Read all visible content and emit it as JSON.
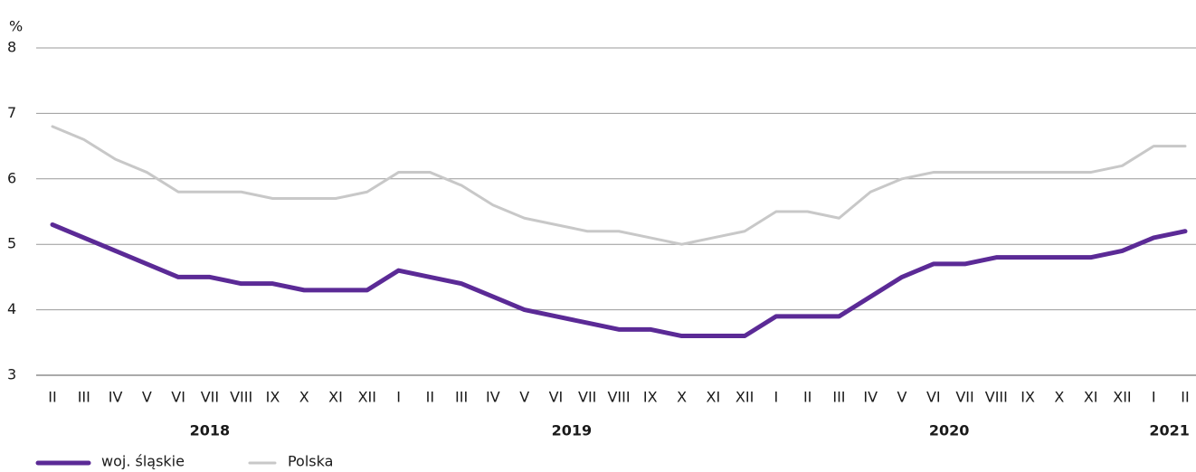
{
  "chart_data": {
    "type": "line",
    "y_unit": "%",
    "year_groups": [
      {
        "label": "2018",
        "categories": [
          "II",
          "III",
          "IV",
          "V",
          "VI",
          "VII",
          "VIII",
          "IX",
          "X",
          "XI",
          "XII"
        ]
      },
      {
        "label": "2019",
        "categories": [
          "I",
          "II",
          "III",
          "IV",
          "V",
          "VI",
          "VII",
          "VIII",
          "IX",
          "X",
          "XI",
          "XII"
        ]
      },
      {
        "label": "2020",
        "categories": [
          "I",
          "II",
          "III",
          "IV",
          "V",
          "VI",
          "VII",
          "VIII",
          "IX",
          "X",
          "XI",
          "XII"
        ]
      },
      {
        "label": "2021",
        "categories": [
          "I",
          "II"
        ]
      }
    ],
    "series": [
      {
        "name": "woj. śląskie",
        "color": "#5b2a96",
        "width": 5,
        "values": [
          5.3,
          5.1,
          4.9,
          4.7,
          4.5,
          4.5,
          4.4,
          4.4,
          4.3,
          4.3,
          4.3,
          4.6,
          4.5,
          4.4,
          4.2,
          4.0,
          3.9,
          3.8,
          3.7,
          3.7,
          3.6,
          3.6,
          3.6,
          3.9,
          3.9,
          3.9,
          4.2,
          4.5,
          4.7,
          4.7,
          4.8,
          4.8,
          4.8,
          4.8,
          4.9,
          5.1,
          5.2
        ]
      },
      {
        "name": "Polska",
        "color": "#c8c8c8",
        "width": 3,
        "values": [
          6.8,
          6.6,
          6.3,
          6.1,
          5.8,
          5.8,
          5.8,
          5.7,
          5.7,
          5.7,
          5.8,
          6.1,
          6.1,
          5.9,
          5.6,
          5.4,
          5.3,
          5.2,
          5.2,
          5.1,
          5.0,
          5.1,
          5.2,
          5.5,
          5.5,
          5.4,
          5.8,
          6.0,
          6.1,
          6.1,
          6.1,
          6.1,
          6.1,
          6.1,
          6.2,
          6.5,
          6.5
        ]
      }
    ],
    "ylim": [
      3,
      8
    ],
    "yticks": [
      3,
      4,
      5,
      6,
      7,
      8
    ],
    "grid": true,
    "legend": "bottom-left"
  }
}
